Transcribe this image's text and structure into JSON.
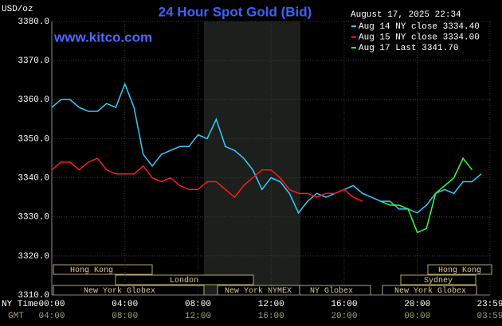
{
  "chart_data": {
    "type": "line",
    "title": "24 Hour Spot Gold (Bid)",
    "watermark": "www.kitco.com",
    "timestamp": "August 17, 2025 22:34",
    "ylabel": "USD/oz",
    "xlabel": "NY Time",
    "x2label": "GMT",
    "ylim": [
      3310,
      3380
    ],
    "yticks": [
      {
        "value": 3380,
        "label": "3380.0"
      },
      {
        "value": 3370,
        "label": "3370.0"
      },
      {
        "value": 3360,
        "label": "3360.0"
      },
      {
        "value": 3350,
        "label": "3350.0"
      },
      {
        "value": 3340,
        "label": "3340.0"
      },
      {
        "value": 3330,
        "label": "3330.0"
      },
      {
        "value": 3320,
        "label": "3320.0"
      },
      {
        "value": 3310,
        "label": "3310.0"
      }
    ],
    "xlim": [
      0,
      23.98
    ],
    "xticks": [
      {
        "value": 0,
        "label": "00:00"
      },
      {
        "value": 4,
        "label": "04:00"
      },
      {
        "value": 8,
        "label": "08:00"
      },
      {
        "value": 12,
        "label": "12:00"
      },
      {
        "value": 16,
        "label": "16:00"
      },
      {
        "value": 20,
        "label": "20:00"
      },
      {
        "value": 23.98,
        "label": "23:59"
      }
    ],
    "x2ticks": [
      {
        "value": 0,
        "label": "04:00"
      },
      {
        "value": 4,
        "label": "08:00"
      },
      {
        "value": 8,
        "label": "12:00"
      },
      {
        "value": 12,
        "label": "16:00"
      },
      {
        "value": 16,
        "label": "20:00"
      },
      {
        "value": 20,
        "label": "00:00"
      },
      {
        "value": 23.98,
        "label": "03:59"
      }
    ],
    "grid": true,
    "x": [
      0,
      0.5,
      1,
      1.5,
      2,
      2.5,
      3,
      3.5,
      4,
      4.5,
      5,
      5.5,
      6,
      6.5,
      7,
      7.5,
      8,
      8.5,
      9,
      9.5,
      10,
      10.5,
      11,
      11.5,
      12,
      12.5,
      13,
      13.5,
      14,
      14.5,
      15,
      15.5,
      16,
      16.5,
      17,
      17.5,
      18,
      18.5,
      19,
      19.5,
      20,
      20.5,
      21,
      21.5,
      22,
      22.5,
      23,
      23.5
    ],
    "series": [
      {
        "name": "Aug 14 NY close 3334.40",
        "color": "#33ccff",
        "values": [
          3358,
          3360,
          3360,
          3358,
          3357,
          3357,
          3359,
          3358,
          3364,
          3358,
          3346,
          3343,
          3346,
          3347,
          3348,
          3348,
          3351,
          3350,
          3355,
          3348,
          3347,
          3345,
          3342,
          3337,
          3340,
          3339,
          3336,
          3331,
          3334,
          3336,
          3335,
          3336,
          3337,
          3338,
          3336,
          3335,
          3334,
          3334,
          3332,
          3332,
          3331,
          3333,
          3336,
          3337,
          3336,
          3339,
          3339,
          3341
        ]
      },
      {
        "name": "Aug 15 NY close 3334.00",
        "color": "#ff1a1a",
        "values": [
          3342,
          3344,
          3344,
          3342,
          3344,
          3345,
          3342,
          3341,
          3341,
          3341,
          3343,
          3340,
          3339,
          3340,
          3338,
          3337,
          3337,
          3339,
          3339,
          3337,
          3335,
          3338,
          3340,
          3342,
          3342,
          3340,
          3337,
          3336,
          3336,
          3335,
          3336,
          3336,
          3337,
          3335,
          3334,
          null,
          null,
          null,
          null,
          null,
          null,
          null,
          null,
          null,
          null,
          null,
          null,
          null
        ]
      },
      {
        "name": "Aug 17 Last 3341.70",
        "color": "#33ff33",
        "values": [
          null,
          null,
          null,
          null,
          null,
          null,
          null,
          null,
          null,
          null,
          null,
          null,
          null,
          null,
          null,
          null,
          null,
          null,
          null,
          null,
          null,
          null,
          null,
          null,
          null,
          null,
          null,
          null,
          null,
          null,
          null,
          null,
          null,
          null,
          null,
          null,
          3334,
          3333,
          3333,
          3332,
          3326,
          3327,
          3336,
          3338,
          3340,
          3345,
          3342,
          null
        ]
      }
    ],
    "sessions": [
      "Hong Kong",
      "Hong Kong",
      "London",
      "Sydney",
      "New York Globex",
      "New York NYMEX",
      "NY Globex",
      "New York Globex"
    ]
  }
}
